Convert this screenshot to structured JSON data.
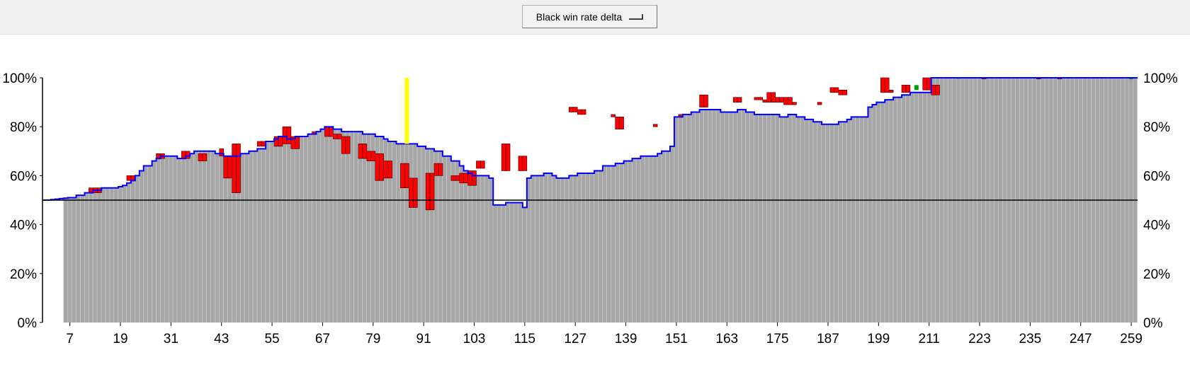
{
  "toolbar": {
    "dropdown_value": "Black win rate delta"
  },
  "chart_data": {
    "type": "bar",
    "x_start": 1,
    "x_end": 260,
    "bars_from": 6,
    "ylim": [
      0,
      100
    ],
    "y_ticks": [
      "0%",
      "20%",
      "40%",
      "60%",
      "80%",
      "100%"
    ],
    "x_ticks": [
      7,
      19,
      31,
      43,
      55,
      67,
      79,
      91,
      103,
      115,
      127,
      139,
      151,
      163,
      175,
      187,
      199,
      211,
      223,
      235,
      247,
      259
    ],
    "reference_line": 50,
    "current_move": 87,
    "colors": {
      "bar": "#a6a6a6",
      "loss": "#ff0000",
      "gain": "#00a000",
      "line": "#0000ff",
      "marker": "#ffff00",
      "reference": "#000000"
    },
    "win_rate": [
      50,
      50,
      50.2,
      50.4,
      50.6,
      50.8,
      51,
      51,
      52,
      52,
      53,
      53,
      54,
      54,
      55,
      55,
      55,
      55,
      55.5,
      56,
      57,
      58,
      60,
      62,
      64,
      64,
      66,
      67,
      68,
      68,
      68,
      68,
      67,
      67,
      68,
      69,
      70,
      70,
      70,
      70,
      70,
      69,
      69,
      68,
      68,
      68,
      68,
      69,
      69,
      70,
      70,
      71,
      71,
      74,
      74,
      75,
      76,
      76,
      75,
      75,
      76,
      76,
      76,
      77,
      77,
      78,
      79,
      80,
      80,
      79,
      79,
      78,
      78,
      78,
      78,
      78,
      77,
      77,
      77,
      76,
      76,
      75,
      74,
      74,
      73,
      73,
      73,
      73,
      73,
      72,
      72,
      71,
      71,
      70,
      70,
      68,
      68,
      66,
      66,
      64,
      62,
      61,
      60,
      60,
      60,
      60,
      59,
      48,
      48,
      48,
      49,
      49,
      49,
      49,
      47,
      59,
      60,
      60,
      60,
      61,
      61,
      60,
      59,
      59,
      59,
      60,
      60,
      61,
      61,
      61,
      61,
      62,
      62,
      64,
      64,
      64,
      65,
      65,
      66,
      66,
      67,
      67,
      68,
      68,
      68,
      68,
      69,
      70,
      70,
      72,
      84,
      84,
      85,
      85,
      86,
      86,
      87,
      87,
      87,
      87,
      87,
      86,
      86,
      86,
      86,
      87,
      87,
      86,
      86,
      85,
      85,
      85,
      85,
      85,
      85,
      84,
      84,
      85,
      85,
      84,
      84,
      83,
      83,
      82,
      82,
      81,
      81,
      81,
      81,
      82,
      82,
      83,
      84,
      84,
      84,
      84,
      88,
      89,
      90,
      90,
      91,
      91,
      92,
      92,
      93,
      93,
      94,
      94,
      94,
      94,
      94
    ],
    "losses": [
      {
        "x": 12,
        "y0": 53,
        "y1": 55
      },
      {
        "x": 13,
        "y0": 53,
        "y1": 55
      },
      {
        "x": 14,
        "y0": 53,
        "y1": 55
      },
      {
        "x": 21,
        "y0": 58,
        "y1": 60
      },
      {
        "x": 22,
        "y0": 58,
        "y1": 60
      },
      {
        "x": 28,
        "y0": 67,
        "y1": 69
      },
      {
        "x": 29,
        "y0": 67,
        "y1": 69
      },
      {
        "x": 34,
        "y0": 67,
        "y1": 70
      },
      {
        "x": 35,
        "y0": 67,
        "y1": 70
      },
      {
        "x": 38,
        "y0": 66,
        "y1": 69
      },
      {
        "x": 39,
        "y0": 66,
        "y1": 69
      },
      {
        "x": 43,
        "y0": 68,
        "y1": 71
      },
      {
        "x": 44,
        "y0": 59,
        "y1": 68
      },
      {
        "x": 45,
        "y0": 59,
        "y1": 68
      },
      {
        "x": 46,
        "y0": 53,
        "y1": 73
      },
      {
        "x": 47,
        "y0": 53,
        "y1": 73
      },
      {
        "x": 52,
        "y0": 72,
        "y1": 74
      },
      {
        "x": 53,
        "y0": 72,
        "y1": 74
      },
      {
        "x": 56,
        "y0": 72,
        "y1": 76
      },
      {
        "x": 57,
        "y0": 72,
        "y1": 76
      },
      {
        "x": 58,
        "y0": 73,
        "y1": 80
      },
      {
        "x": 59,
        "y0": 73,
        "y1": 80
      },
      {
        "x": 60,
        "y0": 71,
        "y1": 76
      },
      {
        "x": 61,
        "y0": 71,
        "y1": 76
      },
      {
        "x": 65,
        "y0": 77,
        "y1": 78
      },
      {
        "x": 68,
        "y0": 76,
        "y1": 80
      },
      {
        "x": 69,
        "y0": 76,
        "y1": 80
      },
      {
        "x": 70,
        "y0": 75,
        "y1": 77
      },
      {
        "x": 71,
        "y0": 75,
        "y1": 77
      },
      {
        "x": 72,
        "y0": 69,
        "y1": 76
      },
      {
        "x": 73,
        "y0": 69,
        "y1": 76
      },
      {
        "x": 76,
        "y0": 67,
        "y1": 73
      },
      {
        "x": 77,
        "y0": 67,
        "y1": 73
      },
      {
        "x": 78,
        "y0": 66,
        "y1": 70
      },
      {
        "x": 79,
        "y0": 66,
        "y1": 70
      },
      {
        "x": 80,
        "y0": 58,
        "y1": 69
      },
      {
        "x": 81,
        "y0": 58,
        "y1": 69
      },
      {
        "x": 82,
        "y0": 59,
        "y1": 66
      },
      {
        "x": 83,
        "y0": 59,
        "y1": 66
      },
      {
        "x": 86,
        "y0": 55,
        "y1": 65
      },
      {
        "x": 87,
        "y0": 55,
        "y1": 65
      },
      {
        "x": 88,
        "y0": 47,
        "y1": 59
      },
      {
        "x": 89,
        "y0": 47,
        "y1": 59
      },
      {
        "x": 92,
        "y0": 46,
        "y1": 61
      },
      {
        "x": 93,
        "y0": 46,
        "y1": 61
      },
      {
        "x": 94,
        "y0": 60,
        "y1": 65
      },
      {
        "x": 95,
        "y0": 60,
        "y1": 65
      },
      {
        "x": 98,
        "y0": 58,
        "y1": 60
      },
      {
        "x": 99,
        "y0": 58,
        "y1": 60
      },
      {
        "x": 100,
        "y0": 57,
        "y1": 61
      },
      {
        "x": 101,
        "y0": 57,
        "y1": 61
      },
      {
        "x": 102,
        "y0": 56,
        "y1": 62
      },
      {
        "x": 103,
        "y0": 56,
        "y1": 62
      },
      {
        "x": 104,
        "y0": 63,
        "y1": 66
      },
      {
        "x": 105,
        "y0": 63,
        "y1": 66
      },
      {
        "x": 110,
        "y0": 62,
        "y1": 73
      },
      {
        "x": 111,
        "y0": 62,
        "y1": 73
      },
      {
        "x": 114,
        "y0": 62,
        "y1": 68
      },
      {
        "x": 115,
        "y0": 62,
        "y1": 68
      },
      {
        "x": 126,
        "y0": 86,
        "y1": 88
      },
      {
        "x": 127,
        "y0": 86,
        "y1": 88
      },
      {
        "x": 128,
        "y0": 85,
        "y1": 87
      },
      {
        "x": 129,
        "y0": 85,
        "y1": 87
      },
      {
        "x": 136,
        "y0": 84,
        "y1": 85
      },
      {
        "x": 137,
        "y0": 79,
        "y1": 84
      },
      {
        "x": 138,
        "y0": 79,
        "y1": 84
      },
      {
        "x": 146,
        "y0": 80,
        "y1": 81
      },
      {
        "x": 152,
        "y0": 84,
        "y1": 85
      },
      {
        "x": 157,
        "y0": 88,
        "y1": 93
      },
      {
        "x": 158,
        "y0": 88,
        "y1": 93
      },
      {
        "x": 165,
        "y0": 90,
        "y1": 92
      },
      {
        "x": 166,
        "y0": 90,
        "y1": 92
      },
      {
        "x": 170,
        "y0": 91,
        "y1": 92
      },
      {
        "x": 171,
        "y0": 91,
        "y1": 92
      },
      {
        "x": 172,
        "y0": 90,
        "y1": 91
      },
      {
        "x": 173,
        "y0": 90,
        "y1": 94
      },
      {
        "x": 174,
        "y0": 90,
        "y1": 94
      },
      {
        "x": 175,
        "y0": 90,
        "y1": 92
      },
      {
        "x": 176,
        "y0": 90,
        "y1": 92
      },
      {
        "x": 177,
        "y0": 89,
        "y1": 92
      },
      {
        "x": 178,
        "y0": 89,
        "y1": 92
      },
      {
        "x": 179,
        "y0": 89,
        "y1": 90
      },
      {
        "x": 185,
        "y0": 89,
        "y1": 90
      },
      {
        "x": 188,
        "y0": 94,
        "y1": 96
      },
      {
        "x": 189,
        "y0": 94,
        "y1": 96
      },
      {
        "x": 190,
        "y0": 93,
        "y1": 95
      },
      {
        "x": 191,
        "y0": 93,
        "y1": 95
      },
      {
        "x": 200,
        "y0": 94,
        "y1": 100
      },
      {
        "x": 201,
        "y0": 94,
        "y1": 100
      },
      {
        "x": 202,
        "y0": 94,
        "y1": 95
      },
      {
        "x": 205,
        "y0": 94,
        "y1": 97
      },
      {
        "x": 206,
        "y0": 94,
        "y1": 97
      },
      {
        "x": 210,
        "y0": 95,
        "y1": 100
      },
      {
        "x": 211,
        "y0": 95,
        "y1": 100
      },
      {
        "x": 212,
        "y0": 93,
        "y1": 97
      },
      {
        "x": 213,
        "y0": 93,
        "y1": 97
      },
      {
        "x": 224,
        "y0": 99.5,
        "y1": 100
      },
      {
        "x": 237,
        "y0": 99.5,
        "y1": 100
      },
      {
        "x": 242,
        "y0": 99.5,
        "y1": 100
      }
    ],
    "gains": [
      {
        "x": 208,
        "y0": 95,
        "y1": 97
      },
      {
        "x": 218,
        "y0": 99.6,
        "y1": 100
      },
      {
        "x": 259,
        "y0": 99.4,
        "y1": 100
      }
    ]
  }
}
